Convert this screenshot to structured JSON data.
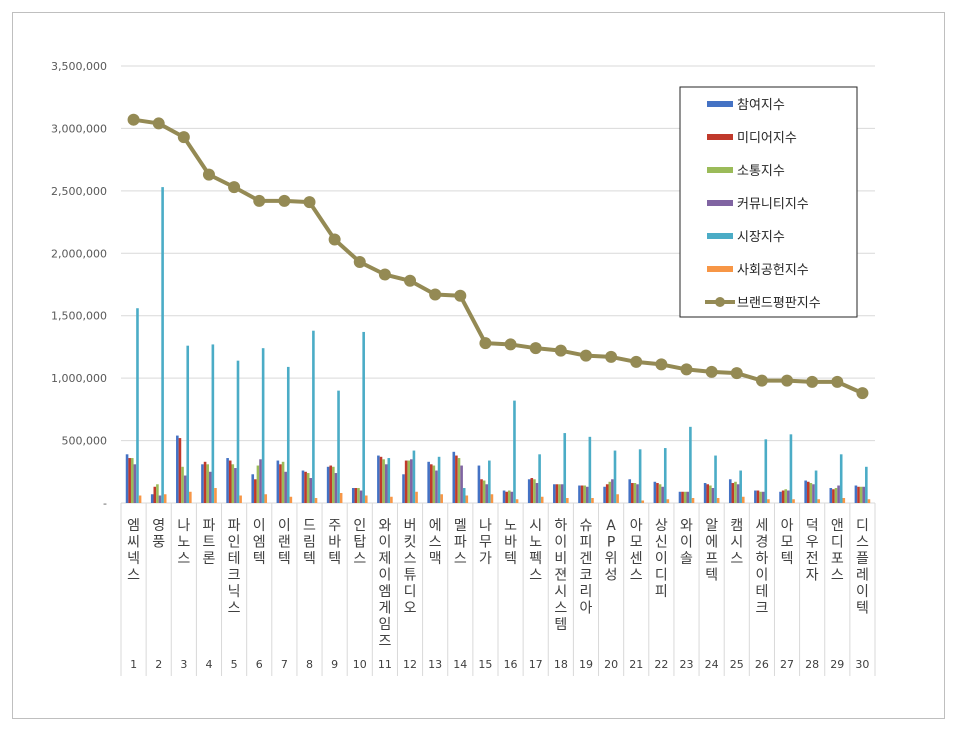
{
  "chart_data": {
    "type": "bar+line",
    "title": "",
    "xlabel": "",
    "ylabel": "",
    "ylim": [
      0,
      3500000
    ],
    "yticks": [
      "-",
      "500,000",
      "1,000,000",
      "1,500,000",
      "2,000,000",
      "2,500,000",
      "3,000,000",
      "3,500,000"
    ],
    "grid": true,
    "legend_position": "top-right",
    "categories": [
      {
        "rank": "1",
        "name": "엠씨넥스"
      },
      {
        "rank": "2",
        "name": "영풍"
      },
      {
        "rank": "3",
        "name": "나노스"
      },
      {
        "rank": "4",
        "name": "파트론"
      },
      {
        "rank": "5",
        "name": "파인테크닉스"
      },
      {
        "rank": "6",
        "name": "이엠텍"
      },
      {
        "rank": "7",
        "name": "이랜텍"
      },
      {
        "rank": "8",
        "name": "드림텍"
      },
      {
        "rank": "9",
        "name": "주바텍"
      },
      {
        "rank": "10",
        "name": "인탑스"
      },
      {
        "rank": "11",
        "name": "와이제이엠게임즈"
      },
      {
        "rank": "12",
        "name": "버킷스튜디오"
      },
      {
        "rank": "13",
        "name": "에스맥"
      },
      {
        "rank": "14",
        "name": "멜파스"
      },
      {
        "rank": "15",
        "name": "나무가"
      },
      {
        "rank": "16",
        "name": "노바텍"
      },
      {
        "rank": "17",
        "name": "시노펙스"
      },
      {
        "rank": "18",
        "name": "하이비젼시스템"
      },
      {
        "rank": "19",
        "name": "슈피겐코리아"
      },
      {
        "rank": "20",
        "name": "AP위성"
      },
      {
        "rank": "21",
        "name": "아모센스"
      },
      {
        "rank": "22",
        "name": "상신이디피"
      },
      {
        "rank": "23",
        "name": "와이솔"
      },
      {
        "rank": "24",
        "name": "알에프텍"
      },
      {
        "rank": "25",
        "name": "캠시스"
      },
      {
        "rank": "26",
        "name": "세경하이테크"
      },
      {
        "rank": "27",
        "name": "아모텍"
      },
      {
        "rank": "28",
        "name": "덕우전자"
      },
      {
        "rank": "29",
        "name": "앤디포스"
      },
      {
        "rank": "30",
        "name": "디스플레이텍"
      }
    ],
    "series": [
      {
        "name": "참여지수",
        "type": "bar",
        "color": "#4472c4",
        "values": [
          390000,
          70000,
          540000,
          310000,
          360000,
          230000,
          340000,
          260000,
          290000,
          120000,
          380000,
          230000,
          330000,
          410000,
          300000,
          100000,
          190000,
          150000,
          140000,
          130000,
          190000,
          170000,
          90000,
          160000,
          190000,
          100000,
          90000,
          180000,
          120000,
          140000
        ]
      },
      {
        "name": "미디어지수",
        "type": "bar",
        "color": "#c0392b",
        "values": [
          360000,
          130000,
          520000,
          330000,
          340000,
          190000,
          310000,
          250000,
          300000,
          120000,
          370000,
          340000,
          310000,
          380000,
          190000,
          90000,
          200000,
          150000,
          140000,
          150000,
          160000,
          160000,
          90000,
          150000,
          160000,
          100000,
          100000,
          170000,
          110000,
          130000
        ]
      },
      {
        "name": "소통지수",
        "type": "bar",
        "color": "#9bbb59",
        "values": [
          360000,
          150000,
          290000,
          310000,
          310000,
          300000,
          330000,
          240000,
          290000,
          120000,
          350000,
          340000,
          300000,
          360000,
          180000,
          100000,
          190000,
          150000,
          140000,
          170000,
          160000,
          150000,
          90000,
          140000,
          170000,
          90000,
          110000,
          160000,
          120000,
          130000
        ]
      },
      {
        "name": "커뮤니티지수",
        "type": "bar",
        "color": "#8064a2",
        "values": [
          310000,
          60000,
          220000,
          250000,
          280000,
          350000,
          250000,
          200000,
          240000,
          100000,
          310000,
          350000,
          260000,
          300000,
          150000,
          90000,
          160000,
          150000,
          130000,
          190000,
          150000,
          130000,
          90000,
          120000,
          150000,
          90000,
          100000,
          150000,
          140000,
          130000
        ]
      },
      {
        "name": "시장지수",
        "type": "bar",
        "color": "#4bacc6",
        "values": [
          1560000,
          2530000,
          1260000,
          1270000,
          1140000,
          1240000,
          1090000,
          1380000,
          900000,
          1370000,
          360000,
          420000,
          370000,
          120000,
          340000,
          820000,
          390000,
          560000,
          530000,
          420000,
          430000,
          440000,
          610000,
          380000,
          260000,
          510000,
          550000,
          260000,
          390000,
          290000
        ]
      },
      {
        "name": "사회공헌지수",
        "type": "bar",
        "color": "#f79646",
        "values": [
          60000,
          70000,
          90000,
          120000,
          60000,
          70000,
          50000,
          40000,
          80000,
          60000,
          50000,
          90000,
          70000,
          60000,
          70000,
          30000,
          50000,
          40000,
          40000,
          70000,
          20000,
          30000,
          40000,
          40000,
          50000,
          30000,
          30000,
          30000,
          40000,
          30000
        ]
      },
      {
        "name": "브랜드평판지수",
        "type": "line",
        "color": "#948a54",
        "values": [
          3070000,
          3040000,
          2930000,
          2630000,
          2530000,
          2420000,
          2420000,
          2410000,
          2110000,
          1930000,
          1830000,
          1780000,
          1670000,
          1660000,
          1280000,
          1270000,
          1240000,
          1220000,
          1180000,
          1170000,
          1130000,
          1110000,
          1070000,
          1050000,
          1040000,
          980000,
          980000,
          970000,
          970000,
          880000
        ]
      }
    ]
  }
}
